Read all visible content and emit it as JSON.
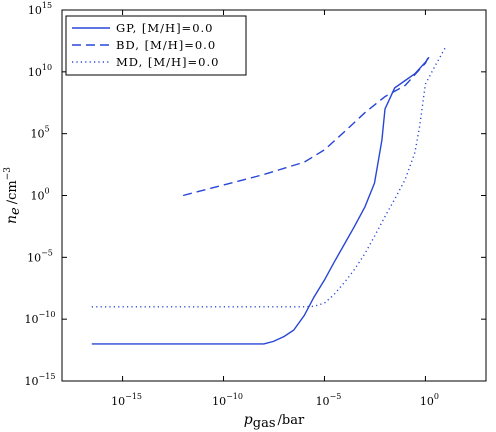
{
  "chart_data": {
    "type": "line",
    "title": "",
    "xlabel": {
      "symbol": "p",
      "subscript": "gas",
      "unit": "/bar"
    },
    "ylabel": {
      "symbol": "n",
      "subscript": "e",
      "unit": "/cm",
      "unit_exp": "−3"
    },
    "x_scale": "log",
    "y_scale": "log",
    "xlim": [
      1e-18,
      1000.0
    ],
    "ylim": [
      1e-15,
      1000000000000000.0
    ],
    "grid": false,
    "legend_position": "top-left",
    "x_ticks": [
      {
        "value": 1e-15,
        "base": "10",
        "exp": "−15"
      },
      {
        "value": 1e-10,
        "base": "10",
        "exp": "−10"
      },
      {
        "value": 1e-05,
        "base": "10",
        "exp": "−5"
      },
      {
        "value": 1,
        "base": "10",
        "exp": "0"
      }
    ],
    "y_ticks": [
      {
        "value": 1e-15,
        "base": "10",
        "exp": "−15"
      },
      {
        "value": 1e-10,
        "base": "10",
        "exp": "−10"
      },
      {
        "value": 1e-05,
        "base": "10",
        "exp": "−5"
      },
      {
        "value": 1,
        "base": "10",
        "exp": "0"
      },
      {
        "value": 100000.0,
        "base": "10",
        "exp": "5"
      },
      {
        "value": 10000000000.0,
        "base": "10",
        "exp": "10"
      },
      {
        "value": 1000000000000000.0,
        "base": "10",
        "exp": "15"
      }
    ],
    "series": [
      {
        "name": "GP, [M/H]=0.0",
        "style": "solid",
        "color": "#2846d6",
        "x": [
          3e-17,
          1e-12,
          1e-08,
          3e-08,
          1e-07,
          3e-07,
          1e-06,
          3e-06,
          1e-05,
          3e-05,
          0.0001,
          0.0003,
          0.001,
          0.003,
          0.007,
          0.01,
          0.03,
          0.1,
          0.3,
          1.0,
          1.5
        ],
        "y": [
          1e-12,
          1e-12,
          1e-12,
          1.6e-12,
          4e-12,
          1.3e-11,
          2e-10,
          6e-09,
          1.5e-07,
          4e-06,
          0.00013,
          0.003,
          0.12,
          10,
          30000.0,
          10000000.0,
          500000000.0,
          2000000000.0,
          7000000000.0,
          60000000000.0,
          150000000000.0
        ]
      },
      {
        "name": "BD, [M/H]=0.0",
        "style": "dashed",
        "color": "#2846d6",
        "x": [
          1e-12,
          1e-10,
          1e-08,
          1e-06,
          1e-05,
          0.0001,
          0.001,
          0.01,
          0.1,
          0.5,
          1.0,
          1.5
        ],
        "y": [
          1,
          7,
          50,
          500.0,
          5000.0,
          150000.0,
          5000000.0,
          100000000.0,
          800000000.0,
          15000000000.0,
          50000000000.0,
          200000000000.0
        ]
      },
      {
        "name": "MD, [M/H]=0.0",
        "style": "dotted",
        "color": "#2846d6",
        "x": [
          3e-17,
          1e-12,
          1e-08,
          1e-06,
          3e-06,
          1e-05,
          3e-05,
          0.0001,
          0.0003,
          0.001,
          0.003,
          0.01,
          0.03,
          0.1,
          0.3,
          0.5,
          1.0,
          3.0,
          10
        ],
        "y": [
          1e-09,
          1e-09,
          1e-09,
          1e-09,
          1.1e-09,
          2e-09,
          1e-08,
          1e-07,
          1e-06,
          2e-05,
          0.0005,
          0.02,
          0.5,
          20,
          3000.0,
          300000.0,
          1000000000.0,
          30000000000.0,
          1000000000000.0
        ]
      }
    ]
  }
}
